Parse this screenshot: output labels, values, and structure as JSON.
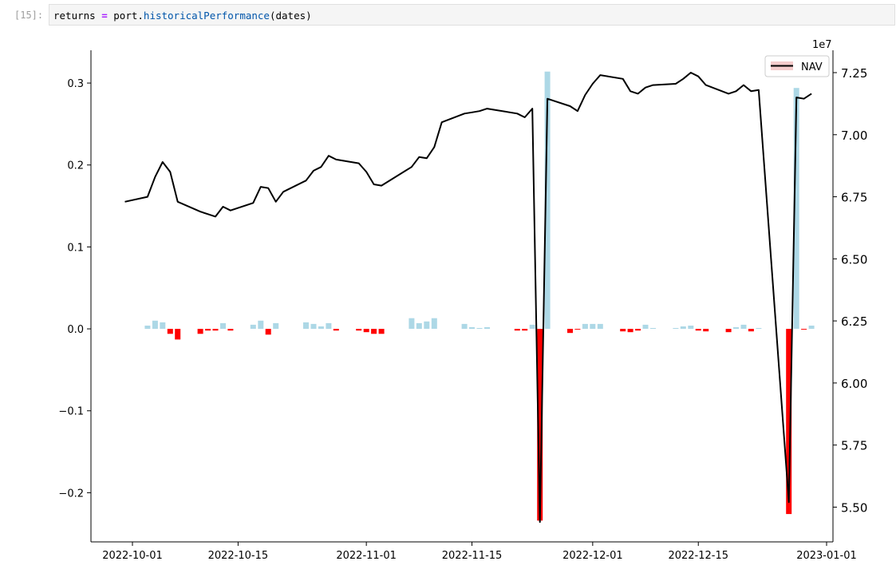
{
  "cell": {
    "prompt": "[15]:",
    "code": {
      "var": "returns",
      "op": "=",
      "obj": "port.",
      "fn": "historicalPerformance",
      "args": "(dates)"
    }
  },
  "colors": {
    "pos_bar": "#add8e6",
    "neg_bar": "#ff0000",
    "nav_line": "#000000"
  },
  "chart_data": {
    "type": "bar",
    "title": "",
    "xlabel": "",
    "ylabel": "",
    "x_ticks": [
      "2022-10-01",
      "2022-10-15",
      "2022-11-01",
      "2022-11-15",
      "2022-12-01",
      "2022-12-15",
      "2023-01-01"
    ],
    "y_ticks": [
      "0.3",
      "0.2",
      "0.1",
      "0.0",
      "−0.1",
      "−0.2"
    ],
    "y2_ticks": [
      "7.25",
      "7.00",
      "6.75",
      "6.50",
      "6.25",
      "6.00",
      "5.75",
      "5.50"
    ],
    "y2_offset": "1e7",
    "ylim": [
      -0.26,
      0.34
    ],
    "y2lim": [
      5.36,
      7.34
    ],
    "legend": {
      "label": "NAV",
      "position": "upper right"
    },
    "series": [
      {
        "type": "bar",
        "values": [
          [
            "2022-10-03",
            0.004
          ],
          [
            "2022-10-04",
            0.01
          ],
          [
            "2022-10-05",
            0.008
          ],
          [
            "2022-10-06",
            -0.006
          ],
          [
            "2022-10-07",
            -0.013
          ],
          [
            "2022-10-10",
            -0.006
          ],
          [
            "2022-10-11",
            -0.002
          ],
          [
            "2022-10-12",
            -0.002
          ],
          [
            "2022-10-13",
            0.007
          ],
          [
            "2022-10-14",
            -0.002
          ],
          [
            "2022-10-17",
            0.005
          ],
          [
            "2022-10-18",
            0.01
          ],
          [
            "2022-10-19",
            -0.007
          ],
          [
            "2022-10-20",
            0.007
          ],
          [
            "2022-10-24",
            0.008
          ],
          [
            "2022-10-25",
            0.006
          ],
          [
            "2022-10-26",
            0.003
          ],
          [
            "2022-10-27",
            0.007
          ],
          [
            "2022-10-28",
            -0.002
          ],
          [
            "2022-10-31",
            -0.002
          ],
          [
            "2022-11-01",
            -0.004
          ],
          [
            "2022-11-02",
            -0.006
          ],
          [
            "2022-11-03",
            -0.006
          ],
          [
            "2022-11-07",
            0.013
          ],
          [
            "2022-11-08",
            0.007
          ],
          [
            "2022-11-09",
            0.009
          ],
          [
            "2022-11-10",
            0.013
          ],
          [
            "2022-11-14",
            0.006
          ],
          [
            "2022-11-15",
            0.002
          ],
          [
            "2022-11-16",
            0.001
          ],
          [
            "2022-11-17",
            0.002
          ],
          [
            "2022-11-21",
            -0.002
          ],
          [
            "2022-11-22",
            -0.002
          ],
          [
            "2022-11-23",
            0.005
          ],
          [
            "2022-11-24",
            -0.234
          ],
          [
            "2022-11-25",
            0.314
          ],
          [
            "2022-11-28",
            -0.005
          ],
          [
            "2022-11-29",
            -0.001
          ],
          [
            "2022-11-30",
            0.006
          ],
          [
            "2022-12-01",
            0.006
          ],
          [
            "2022-12-02",
            0.006
          ],
          [
            "2022-12-05",
            -0.003
          ],
          [
            "2022-12-06",
            -0.004
          ],
          [
            "2022-12-07",
            -0.002
          ],
          [
            "2022-12-08",
            0.005
          ],
          [
            "2022-12-09",
            0.001
          ],
          [
            "2022-12-12",
            0.001
          ],
          [
            "2022-12-13",
            0.003
          ],
          [
            "2022-12-14",
            0.004
          ],
          [
            "2022-12-15",
            -0.002
          ],
          [
            "2022-12-16",
            -0.003
          ],
          [
            "2022-12-19",
            -0.004
          ],
          [
            "2022-12-20",
            0.002
          ],
          [
            "2022-12-21",
            0.005
          ],
          [
            "2022-12-22",
            -0.003
          ],
          [
            "2022-12-23",
            0.001
          ],
          [
            "2022-12-27",
            -0.226
          ],
          [
            "2022-12-28",
            0.294
          ],
          [
            "2022-12-29",
            -0.001
          ],
          [
            "2022-12-30",
            0.004
          ]
        ]
      },
      {
        "type": "line",
        "name": "NAV",
        "axis": "right",
        "values": [
          [
            "2022-09-30",
            6.73
          ],
          [
            "2022-10-03",
            6.75
          ],
          [
            "2022-10-04",
            6.83
          ],
          [
            "2022-10-05",
            6.89
          ],
          [
            "2022-10-06",
            6.85
          ],
          [
            "2022-10-07",
            6.73
          ],
          [
            "2022-10-10",
            6.69
          ],
          [
            "2022-10-11",
            6.68
          ],
          [
            "2022-10-12",
            6.67
          ],
          [
            "2022-10-13",
            6.71
          ],
          [
            "2022-10-14",
            6.695
          ],
          [
            "2022-10-17",
            6.725
          ],
          [
            "2022-10-18",
            6.79
          ],
          [
            "2022-10-19",
            6.785
          ],
          [
            "2022-10-20",
            6.73
          ],
          [
            "2022-10-21",
            6.77
          ],
          [
            "2022-10-24",
            6.815
          ],
          [
            "2022-10-25",
            6.855
          ],
          [
            "2022-10-26",
            6.87
          ],
          [
            "2022-10-27",
            6.915
          ],
          [
            "2022-10-28",
            6.9
          ],
          [
            "2022-10-31",
            6.885
          ],
          [
            "2022-11-01",
            6.85
          ],
          [
            "2022-11-02",
            6.8
          ],
          [
            "2022-11-03",
            6.795
          ],
          [
            "2022-11-07",
            6.87
          ],
          [
            "2022-11-08",
            6.91
          ],
          [
            "2022-11-09",
            6.905
          ],
          [
            "2022-11-10",
            6.95
          ],
          [
            "2022-11-11",
            7.05
          ],
          [
            "2022-11-14",
            7.085
          ],
          [
            "2022-11-15",
            7.09
          ],
          [
            "2022-11-16",
            7.095
          ],
          [
            "2022-11-17",
            7.105
          ],
          [
            "2022-11-21",
            7.085
          ],
          [
            "2022-11-22",
            7.07
          ],
          [
            "2022-11-23",
            7.105
          ],
          [
            "2022-11-24",
            5.44
          ],
          [
            "2022-11-25",
            7.145
          ],
          [
            "2022-11-28",
            7.115
          ],
          [
            "2022-11-29",
            7.095
          ],
          [
            "2022-11-30",
            7.16
          ],
          [
            "2022-12-01",
            7.205
          ],
          [
            "2022-12-02",
            7.24
          ],
          [
            "2022-12-05",
            7.225
          ],
          [
            "2022-12-06",
            7.175
          ],
          [
            "2022-12-07",
            7.165
          ],
          [
            "2022-12-08",
            7.19
          ],
          [
            "2022-12-09",
            7.2
          ],
          [
            "2022-12-12",
            7.205
          ],
          [
            "2022-12-13",
            7.225
          ],
          [
            "2022-12-14",
            7.25
          ],
          [
            "2022-12-15",
            7.235
          ],
          [
            "2022-12-16",
            7.2
          ],
          [
            "2022-12-19",
            7.165
          ],
          [
            "2022-12-20",
            7.175
          ],
          [
            "2022-12-21",
            7.2
          ],
          [
            "2022-12-22",
            7.175
          ],
          [
            "2022-12-23",
            7.18
          ],
          [
            "2022-12-27",
            5.52
          ],
          [
            "2022-12-28",
            7.15
          ],
          [
            "2022-12-29",
            7.145
          ],
          [
            "2022-12-30",
            7.165
          ]
        ]
      }
    ]
  }
}
